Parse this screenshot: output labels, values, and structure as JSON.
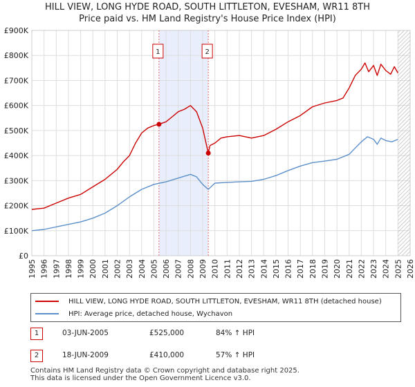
{
  "title_line1": "HILL VIEW, LONG HYDE ROAD, SOUTH LITTLETON, EVESHAM, WR11 8TH",
  "title_line2": "Price paid vs. HM Land Registry's House Price Index (HPI)",
  "colors": {
    "property": "#cc0000",
    "hpi": "#5b8fc9",
    "shade": "#e8eefb",
    "vline": "#e06666"
  },
  "chart_data": {
    "type": "line",
    "title": "HILL VIEW, LONG HYDE ROAD, SOUTH LITTLETON, EVESHAM, WR11 8TH",
    "subtitle": "Price paid vs. HM Land Registry's House Price Index (HPI)",
    "xlabel": "",
    "ylabel": "",
    "xlim": [
      1995,
      2026
    ],
    "ylim": [
      0,
      900000
    ],
    "y_ticks": [
      0,
      100000,
      200000,
      300000,
      400000,
      500000,
      600000,
      700000,
      800000,
      900000
    ],
    "y_tick_labels": [
      "£0",
      "£100K",
      "£200K",
      "£300K",
      "£400K",
      "£500K",
      "£600K",
      "£700K",
      "£800K",
      "£900K"
    ],
    "x_ticks": [
      "1995",
      "1996",
      "1997",
      "1998",
      "1999",
      "2000",
      "2001",
      "2002",
      "2003",
      "2004",
      "2005",
      "2006",
      "2007",
      "2008",
      "2009",
      "2010",
      "2011",
      "2012",
      "2013",
      "2014",
      "2015",
      "2016",
      "2017",
      "2018",
      "2019",
      "2020",
      "2021",
      "2022",
      "2023",
      "2024",
      "2025",
      "2026"
    ],
    "grid": true,
    "shaded_region": [
      2005.42,
      2009.46
    ],
    "data_end": 2025.0,
    "series": [
      {
        "name": "HILL VIEW, LONG HYDE ROAD, SOUTH LITTLETON, EVESHAM, WR11 8TH (detached house)",
        "x": [
          1995,
          1996,
          1997,
          1998,
          1999,
          2000,
          2001,
          2002,
          2002.5,
          2003,
          2003.5,
          2004,
          2004.5,
          2005,
          2005.42,
          2006,
          2006.5,
          2007,
          2007.5,
          2008,
          2008.5,
          2009,
          2009.46,
          2009.6,
          2010,
          2010.5,
          2011,
          2012,
          2013,
          2014,
          2015,
          2016,
          2017,
          2018,
          2019,
          2020,
          2020.5,
          2021,
          2021.5,
          2022,
          2022.3,
          2022.6,
          2023,
          2023.3,
          2023.6,
          2024,
          2024.4,
          2024.7,
          2025
        ],
        "values": [
          185000,
          190000,
          210000,
          230000,
          245000,
          275000,
          305000,
          345000,
          375000,
          400000,
          450000,
          490000,
          510000,
          520000,
          525000,
          535000,
          555000,
          575000,
          585000,
          600000,
          575000,
          510000,
          410000,
          440000,
          450000,
          470000,
          475000,
          480000,
          470000,
          480000,
          505000,
          535000,
          560000,
          595000,
          610000,
          620000,
          630000,
          670000,
          720000,
          745000,
          770000,
          735000,
          760000,
          720000,
          765000,
          740000,
          725000,
          755000,
          730000
        ]
      },
      {
        "name": "HPI: Average price, detached house, Wychavon",
        "x": [
          1995,
          1996,
          1997,
          1998,
          1999,
          2000,
          2001,
          2002,
          2003,
          2004,
          2005,
          2006,
          2007,
          2008,
          2008.5,
          2009,
          2009.46,
          2010,
          2011,
          2012,
          2013,
          2014,
          2015,
          2016,
          2017,
          2018,
          2019,
          2020,
          2021,
          2021.5,
          2022,
          2022.5,
          2023,
          2023.3,
          2023.6,
          2024,
          2024.5,
          2025
        ],
        "values": [
          100000,
          105000,
          115000,
          125000,
          135000,
          150000,
          170000,
          200000,
          235000,
          265000,
          285000,
          295000,
          310000,
          325000,
          315000,
          285000,
          265000,
          290000,
          293000,
          295000,
          297000,
          305000,
          320000,
          340000,
          358000,
          372000,
          378000,
          385000,
          405000,
          430000,
          455000,
          475000,
          465000,
          445000,
          470000,
          460000,
          455000,
          465000
        ]
      }
    ],
    "sales": [
      {
        "id": "1",
        "x": 2005.42,
        "value": 525000
      },
      {
        "id": "2",
        "x": 2009.46,
        "value": 410000
      }
    ]
  },
  "legend": {
    "property_label": "HILL VIEW, LONG HYDE ROAD, SOUTH LITTLETON, EVESHAM, WR11 8TH (detached house)",
    "hpi_label": "HPI: Average price, detached house, Wychavon"
  },
  "transactions": [
    {
      "num": "1",
      "date": "03-JUN-2005",
      "price": "£525,000",
      "hpi": "84% ↑ HPI"
    },
    {
      "num": "2",
      "date": "18-JUN-2009",
      "price": "£410,000",
      "hpi": "57% ↑ HPI"
    }
  ],
  "footer": {
    "line1": "Contains HM Land Registry data © Crown copyright and database right 2025.",
    "line2": "This data is licensed under the Open Government Licence v3.0."
  }
}
